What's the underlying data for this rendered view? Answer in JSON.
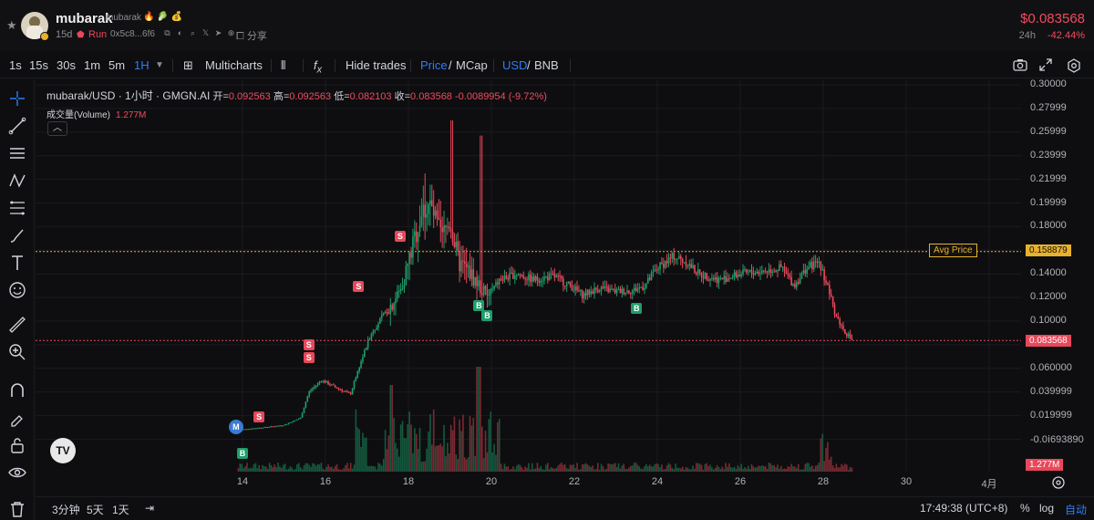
{
  "header": {
    "token_name": "mubarak",
    "token_subname": "mubarak",
    "age": "15d",
    "status": "Run",
    "address": "0x5c8...6f6",
    "share_label": "分享",
    "price": "$0.083568",
    "change_label": "24h",
    "change": "-42.44%"
  },
  "toolbar": {
    "intervals": [
      "1s",
      "15s",
      "30s",
      "1m",
      "5m",
      "1H"
    ],
    "active_interval": "1H",
    "multicharts_label": "Multicharts",
    "hide_trades_label": "Hide trades",
    "price_label": "Price",
    "mcap_label": "MCap",
    "usd_label": "USD",
    "bnb_label": "BNB"
  },
  "legend": {
    "symbol": "mubarak/USD · 1小时 · GMGN.AI",
    "open_label": "开",
    "open": "0.092563",
    "high_label": "高",
    "high": "0.092563",
    "low_label": "低",
    "low": "0.082103",
    "close_label": "收",
    "close": "0.083568",
    "change": "-0.0089954 (-9.72%)",
    "volume_label": "成交量(Volume)",
    "volume": "1.277M"
  },
  "y_axis": [
    "0.30000",
    "0.27999",
    "0.25999",
    "0.23999",
    "0.21999",
    "0.19999",
    "0.18000",
    "0.16000",
    "0.14000",
    "0.12000",
    "0.10000",
    "0.080000",
    "0.060000",
    "0.039999",
    "0.019999",
    "-0.0ⅰ693890"
  ],
  "y_axis_display": [
    "0.30000",
    "0.27999",
    "0.25999",
    "0.23999",
    "0.21999",
    "0.19999",
    "0.18000",
    "0.16000",
    "0.14000",
    "0.12000",
    "0.10000",
    "0.060000",
    "0.039999",
    "0.019999",
    "-0.0ⅰ693890"
  ],
  "x_axis": [
    "14",
    "16",
    "18",
    "20",
    "22",
    "24",
    "26",
    "28",
    "30",
    "4月"
  ],
  "avg_price_label": "Avg Price",
  "avg_price": "0.158879",
  "last_price": "0.083568",
  "volume_tag": "1.277M",
  "bottom": {
    "ranges": [
      "3分钟",
      "5天",
      "1天"
    ],
    "time": "17:49:38 (UTC+8)",
    "percent_label": "%",
    "log_label": "log",
    "auto_label": "自动"
  },
  "markers": [
    {
      "type": "M",
      "day": 13.8,
      "price": 0.012
    },
    {
      "type": "S",
      "day": 14.4,
      "price": 0.019
    },
    {
      "type": "B",
      "day": 14.0,
      "price": -0.012
    },
    {
      "type": "S",
      "day": 15.6,
      "price": 0.069
    },
    {
      "type": "S",
      "day": 15.6,
      "price": 0.08
    },
    {
      "type": "S",
      "day": 16.8,
      "price": 0.129
    },
    {
      "type": "S",
      "day": 17.8,
      "price": 0.172
    },
    {
      "type": "B",
      "day": 19.7,
      "price": 0.113
    },
    {
      "type": "B",
      "day": 19.9,
      "price": 0.105
    },
    {
      "type": "B",
      "day": 23.5,
      "price": 0.111
    }
  ],
  "colors": {
    "up": "#1f9d6b",
    "down": "#e8485a",
    "avg": "#e8b12c",
    "accent": "#2f7cf6"
  }
}
